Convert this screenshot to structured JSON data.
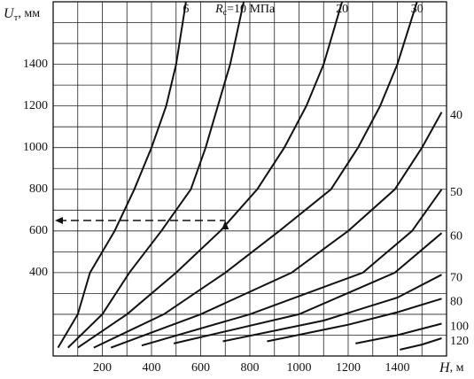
{
  "chart_data": {
    "type": "line",
    "x_label": {
      "symbol": "H",
      "unit": ", м"
    },
    "y_label": {
      "symbol": "U",
      "subscript": "т",
      "unit": ", мм"
    },
    "series_label": {
      "symbol": "R",
      "subscript": "с",
      "eq": "=",
      "unit": " МПа"
    },
    "xlim": [
      0,
      1600
    ],
    "ylim": [
      0,
      1700
    ],
    "xticks": [
      200,
      400,
      600,
      800,
      1000,
      1200,
      1400
    ],
    "yticks": [
      400,
      600,
      800,
      1000,
      1200,
      1400
    ],
    "xgrid": [
      100,
      200,
      300,
      400,
      500,
      600,
      700,
      800,
      900,
      1000,
      1100,
      1200,
      1300,
      1400,
      1500
    ],
    "ygrid": [
      100,
      200,
      300,
      400,
      500,
      600,
      700,
      800,
      900,
      1000,
      1100,
      1200,
      1300,
      1400,
      1500,
      1600
    ],
    "color": "#111111",
    "guide": {
      "x": 700,
      "y": 650
    },
    "series": [
      {
        "name": "6",
        "x": [
          20,
          100,
          150,
          250,
          330,
          400,
          460,
          500,
          540
        ],
        "values": [
          40,
          200,
          400,
          600,
          800,
          1000,
          1200,
          1400,
          1700
        ]
      },
      {
        "name": "10",
        "label_prefix": true,
        "x": [
          60,
          200,
          310,
          440,
          560,
          620,
          670,
          720,
          775
        ],
        "values": [
          40,
          200,
          400,
          600,
          800,
          1000,
          1200,
          1400,
          1700
        ]
      },
      {
        "name": "20",
        "x": [
          100,
          300,
          500,
          680,
          830,
          940,
          1030,
          1100,
          1175
        ],
        "values": [
          40,
          200,
          400,
          600,
          800,
          1000,
          1200,
          1400,
          1700
        ]
      },
      {
        "name": "30",
        "x": [
          165,
          450,
          700,
          920,
          1130,
          1240,
          1330,
          1400,
          1480
        ],
        "values": [
          40,
          200,
          400,
          600,
          800,
          1000,
          1200,
          1400,
          1700
        ]
      },
      {
        "name": "40",
        "x": [
          235,
          600,
          970,
          1200,
          1390,
          1500,
          1580
        ],
        "values": [
          40,
          200,
          400,
          600,
          800,
          1000,
          1170
        ]
      },
      {
        "name": "50",
        "x": [
          360,
          800,
          1260,
          1460,
          1580
        ],
        "values": [
          50,
          200,
          400,
          600,
          800
        ]
      },
      {
        "name": "60",
        "x": [
          490,
          1000,
          1390,
          1580
        ],
        "values": [
          60,
          200,
          400,
          590
        ]
      },
      {
        "name": "70",
        "x": [
          690,
          1100,
          1400,
          1580
        ],
        "values": [
          70,
          170,
          280,
          390
        ]
      },
      {
        "name": "80",
        "x": [
          870,
          1200,
          1400,
          1580
        ],
        "values": [
          70,
          150,
          210,
          275
        ]
      },
      {
        "name": "100",
        "x": [
          1230,
          1400,
          1580
        ],
        "values": [
          60,
          100,
          155
        ]
      },
      {
        "name": "120",
        "x": [
          1410,
          1500,
          1580
        ],
        "values": [
          30,
          55,
          85
        ]
      }
    ]
  }
}
